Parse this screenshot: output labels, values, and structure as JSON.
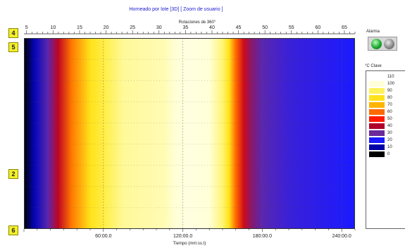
{
  "header": {
    "title": "Horneado por lote [3D] [ Zoom de usuario ]",
    "top_axis_label": "Rotaciones de 360°"
  },
  "markers": [
    {
      "label": "4"
    },
    {
      "label": "5"
    },
    {
      "label": "2"
    },
    {
      "label": "6"
    }
  ],
  "alarm": {
    "label": "Alarma",
    "leds": [
      "green",
      "gray"
    ]
  },
  "legend": {
    "title": "°C Clave",
    "items": [
      {
        "value": "110",
        "color": "#ffffff"
      },
      {
        "value": "100",
        "color": "#ffffd8"
      },
      {
        "value": "90",
        "color": "#fff25a"
      },
      {
        "value": "80",
        "color": "#ffe21a"
      },
      {
        "value": "70",
        "color": "#ffb400"
      },
      {
        "value": "60",
        "color": "#ff6a00"
      },
      {
        "value": "50",
        "color": "#ff1a00"
      },
      {
        "value": "40",
        "color": "#b0002a"
      },
      {
        "value": "30",
        "color": "#6a2a9a"
      },
      {
        "value": "20",
        "color": "#1a1aff"
      },
      {
        "value": "10",
        "color": "#0000a8"
      },
      {
        "value": "0",
        "color": "#000000"
      }
    ]
  },
  "chart_data": {
    "type": "heatmap",
    "title": "Horneado por lote [3D] [ Zoom de usuario ]",
    "xlabel": "Tiempo (mm:ss.t)",
    "top_axis_title": "Rotaciones de 360°",
    "x_ticks": [
      "60:00.0",
      "120:00.0",
      "180:00.0",
      "240:00.0"
    ],
    "x_tick_values": [
      60,
      120,
      180,
      240
    ],
    "xlim": [
      0,
      250
    ],
    "top_ticks": [
      "5",
      "10",
      "15",
      "20",
      "25",
      "30",
      "35",
      "40",
      "45",
      "50",
      "55",
      "60",
      "65"
    ],
    "top_tick_values": [
      5,
      10,
      15,
      20,
      25,
      30,
      35,
      40,
      45,
      50,
      55,
      60,
      65
    ],
    "top_lim": [
      4.5,
      67
    ],
    "grid": true,
    "color_scale_unit": "°C",
    "color_scale": [
      0,
      10,
      20,
      30,
      40,
      50,
      60,
      70,
      80,
      90,
      100,
      110
    ],
    "temperature_profile": {
      "time": [
        0,
        8,
        18,
        26,
        36,
        50,
        62,
        75,
        90,
        105,
        115,
        125,
        140,
        150,
        155,
        160,
        166,
        172,
        180,
        200,
        225,
        250
      ],
      "celsius": [
        0,
        12,
        28,
        42,
        62,
        80,
        88,
        95,
        96,
        97,
        100,
        102,
        100,
        92,
        80,
        60,
        44,
        34,
        28,
        24,
        22,
        20
      ]
    }
  }
}
